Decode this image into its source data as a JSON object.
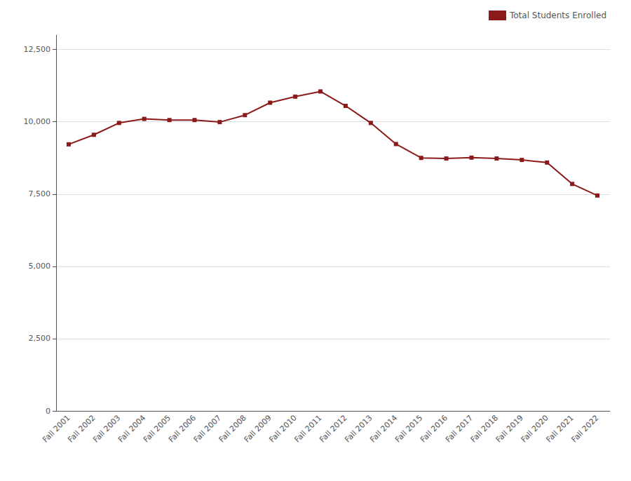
{
  "chart_data": {
    "type": "line",
    "categories": [
      "Fall 2001",
      "Fall 2002",
      "Fall 2003",
      "Fall 2004",
      "Fall 2005",
      "Fall 2006",
      "Fall 2007",
      "Fall 2008",
      "Fall 2009",
      "Fall 2010",
      "Fall 2011",
      "Fall 2012",
      "Fall 2013",
      "Fall 2014",
      "Fall 2015",
      "Fall 2016",
      "Fall 2017",
      "Fall 2018",
      "Fall 2019",
      "Fall 2020",
      "Fall 2021",
      "Fall 2022"
    ],
    "series": [
      {
        "name": "Total Students Enrolled",
        "color": "#8B1A1A",
        "marker": "square",
        "values": [
          9220,
          9550,
          9960,
          10100,
          10060,
          10060,
          9990,
          10230,
          10660,
          10870,
          11050,
          10550,
          9960,
          9230,
          8750,
          8730,
          8760,
          8730,
          8680,
          8590,
          7850,
          7450
        ]
      }
    ],
    "ylim": [
      0,
      13000
    ],
    "yticks": [
      0,
      {
        "value": 2500,
        "label": "2,500"
      },
      {
        "value": 5000,
        "label": "5,000"
      },
      {
        "value": 7500,
        "label": "7,500"
      },
      {
        "value": 10000,
        "label": "10,000"
      },
      {
        "value": 12500,
        "label": "12,500"
      }
    ],
    "grid": true,
    "legend": "upper right"
  }
}
